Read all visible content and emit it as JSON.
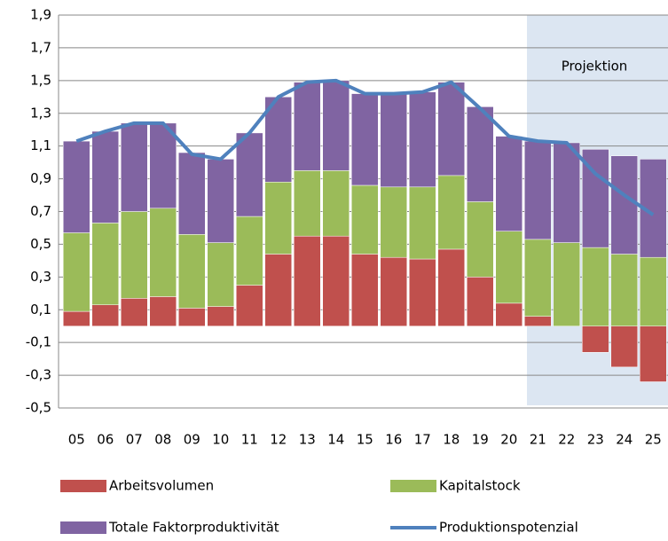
{
  "chart_data": {
    "type": "bar",
    "stacked": true,
    "annotation": "Projektion",
    "categories": [
      "05",
      "06",
      "07",
      "08",
      "09",
      "10",
      "11",
      "12",
      "13",
      "14",
      "15",
      "16",
      "17",
      "18",
      "19",
      "20",
      "21",
      "22",
      "23",
      "24",
      "25"
    ],
    "series": [
      {
        "name": "Arbeitsvolumen",
        "color": "#c0504d",
        "values": [
          0.09,
          0.13,
          0.17,
          0.18,
          0.11,
          0.12,
          0.25,
          0.44,
          0.55,
          0.55,
          0.44,
          0.42,
          0.41,
          0.47,
          0.3,
          0.14,
          0.06,
          0.0,
          -0.16,
          -0.25,
          -0.34
        ]
      },
      {
        "name": "Kapitalstock",
        "color": "#9bbb59",
        "values": [
          0.48,
          0.5,
          0.53,
          0.54,
          0.45,
          0.39,
          0.42,
          0.44,
          0.4,
          0.4,
          0.42,
          0.43,
          0.44,
          0.45,
          0.46,
          0.44,
          0.47,
          0.51,
          0.48,
          0.44,
          0.42
        ]
      },
      {
        "name": "Totale Faktorproduktivität",
        "color": "#8064a2",
        "values": [
          0.56,
          0.56,
          0.54,
          0.52,
          0.5,
          0.51,
          0.51,
          0.52,
          0.54,
          0.55,
          0.56,
          0.57,
          0.58,
          0.57,
          0.58,
          0.58,
          0.6,
          0.61,
          0.6,
          0.6,
          0.6
        ]
      },
      {
        "name": "Produktionspotenzial",
        "color": "#4f81bd",
        "type": "line",
        "values": [
          1.13,
          1.19,
          1.24,
          1.24,
          1.05,
          1.02,
          1.18,
          1.4,
          1.49,
          1.5,
          1.42,
          1.42,
          1.43,
          1.49,
          1.33,
          1.16,
          1.13,
          1.12,
          0.93,
          0.8,
          0.68
        ]
      }
    ],
    "ylim": [
      -0.5,
      1.9
    ],
    "yticks": [
      {
        "value": -0.5,
        "label": "-0,5"
      },
      {
        "value": -0.3,
        "label": "-0,3"
      },
      {
        "value": -0.1,
        "label": "-0,1"
      },
      {
        "value": 0.1,
        "label": "0,1"
      },
      {
        "value": 0.3,
        "label": "0,3"
      },
      {
        "value": 0.5,
        "label": "0,5"
      },
      {
        "value": 0.7,
        "label": "0,7"
      },
      {
        "value": 0.9,
        "label": "0,9"
      },
      {
        "value": 1.1,
        "label": "1,1"
      },
      {
        "value": 1.3,
        "label": "1,3"
      },
      {
        "value": 1.5,
        "label": "1,5"
      },
      {
        "value": 1.7,
        "label": "1,7"
      },
      {
        "value": 1.9,
        "label": "1,9"
      }
    ],
    "grid": true
  }
}
